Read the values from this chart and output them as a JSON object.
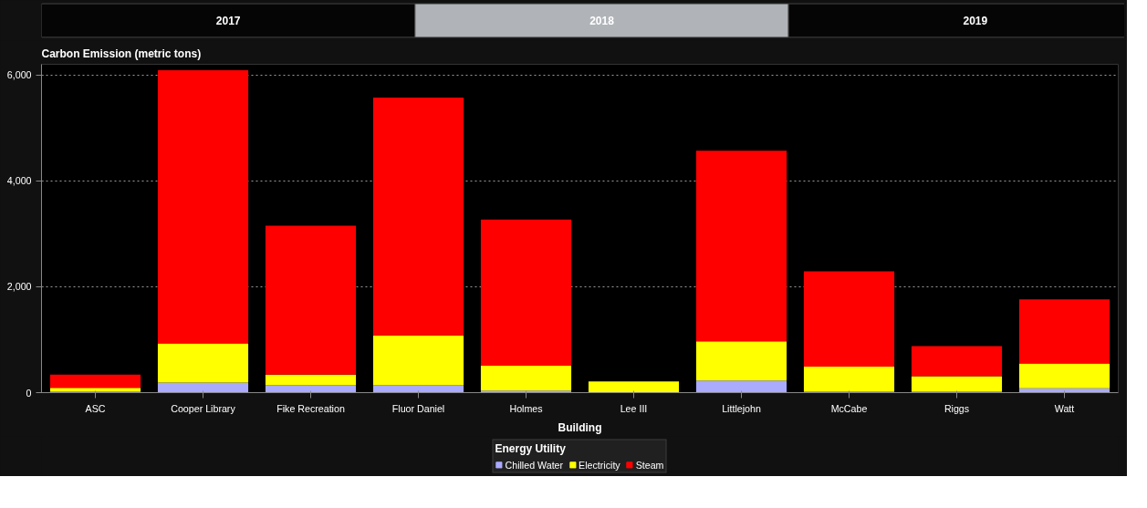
{
  "chart_data": {
    "type": "bar",
    "stacked": true,
    "ylabel": "Carbon Emission (metric tons)",
    "xlabel": "Building",
    "legend_title": "Energy Utility",
    "annotations": [
      "2017",
      "2018",
      "2019"
    ],
    "categories": [
      "ASC",
      "Cooper Library",
      "Fike Recreation",
      "Fluor Daniel",
      "Holmes",
      "Lee III",
      "Littlejohn",
      "McCabe",
      "Riggs",
      "Watt"
    ],
    "series": [
      {
        "name": "Chilled Water",
        "color": "#aaaaff",
        "values": [
          20,
          190,
          140,
          140,
          40,
          null,
          230,
          20,
          20,
          80
        ]
      },
      {
        "name": "Electricity",
        "color": "#ffff00",
        "values": [
          70,
          740,
          200,
          940,
          470,
          210,
          740,
          470,
          290,
          470
        ]
      },
      {
        "name": "Steam",
        "color": "#ff0000",
        "values": [
          250,
          5160,
          2810,
          4490,
          2760,
          null,
          3600,
          1800,
          570,
          1210
        ]
      }
    ],
    "ylim": [
      0,
      6200
    ],
    "yticks": [
      0,
      {
        "value": 2000,
        "label": "2,000"
      },
      {
        "value": 4000,
        "label": "4,000"
      },
      {
        "value": 6000,
        "label": "6,000"
      }
    ],
    "grid": "y",
    "legend": "bottom"
  }
}
